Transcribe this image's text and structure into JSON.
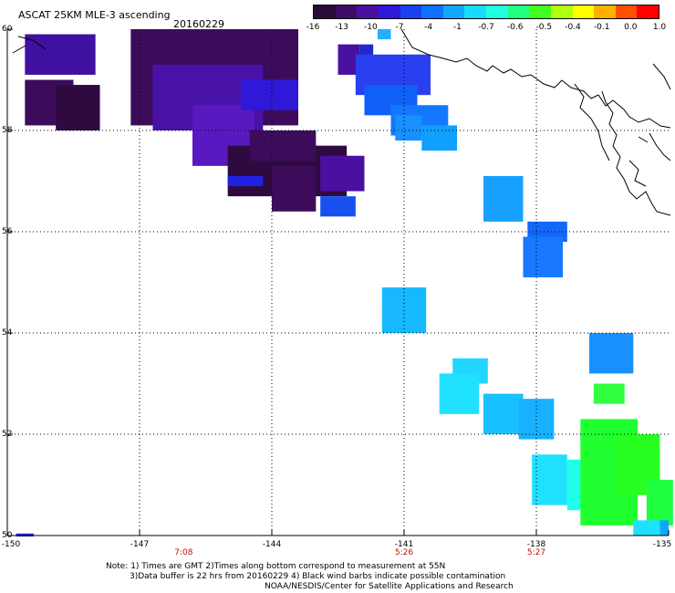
{
  "title": "ASCAT 25KM MLE-3 ascending",
  "date": "20160229",
  "colorbar": {
    "colors": [
      "#2a0a3a",
      "#3c0c66",
      "#4a10a0",
      "#3018d8",
      "#1a40f0",
      "#1070ff",
      "#10a8ff",
      "#18dcff",
      "#20ffe0",
      "#20ff80",
      "#40ff20",
      "#b0ff10",
      "#ffff00",
      "#ffb000",
      "#ff5000",
      "#ff0000"
    ],
    "labels": [
      "-16",
      "-13",
      "-10",
      "-7",
      "-4",
      "-1",
      "-0.7",
      "-0.6",
      "-0.5",
      "-0.4",
      "-0.1",
      "0.0",
      "1.0"
    ]
  },
  "axes": {
    "lat_labels": [
      "60",
      "58",
      "56",
      "54",
      "52",
      "50"
    ],
    "lon_labels": [
      "-150",
      "-147",
      "-144",
      "-141",
      "-138",
      "-135"
    ],
    "time_labels": [
      "7:08",
      "5:26",
      "5:27"
    ],
    "lat_range": [
      50,
      60
    ],
    "lon_range": [
      -150,
      -135
    ]
  },
  "notes": {
    "line1": "Note: 1) Times are GMT 2)Times along bottom correspond to measurement at 55N",
    "line2": "3)Data buffer is 22 hrs from 20160229 4) Black wind barbs indicate possible contamination",
    "line3": "NOAA/NESDIS/Center for Satellite Applications and Research"
  },
  "map_data": {
    "lon_range": [
      -150,
      -135
    ],
    "lat_range": [
      50,
      60
    ],
    "patches": [
      {
        "lon": -149.6,
        "lat": 59.9,
        "w": 1.6,
        "h": 0.8,
        "color": "#4010a0"
      },
      {
        "lon": -149.6,
        "lat": 59.0,
        "w": 1.1,
        "h": 0.9,
        "color": "#3c0c5a"
      },
      {
        "lon": -148.9,
        "lat": 58.9,
        "w": 1.0,
        "h": 0.9,
        "color": "#2e0a40"
      },
      {
        "lon": -147.2,
        "lat": 60.0,
        "w": 3.8,
        "h": 1.9,
        "color": "#3c0c5a"
      },
      {
        "lon": -146.7,
        "lat": 59.3,
        "w": 2.5,
        "h": 1.3,
        "color": "#4812a8"
      },
      {
        "lon": -145.8,
        "lat": 58.5,
        "w": 1.4,
        "h": 1.2,
        "color": "#5a18c0"
      },
      {
        "lon": -145.0,
        "lat": 57.7,
        "w": 2.7,
        "h": 1.0,
        "color": "#2e0a40"
      },
      {
        "lon": -144.5,
        "lat": 58.0,
        "w": 1.5,
        "h": 0.6,
        "color": "#3c0c5a"
      },
      {
        "lon": -142.9,
        "lat": 57.5,
        "w": 1.0,
        "h": 0.7,
        "color": "#4a10a0"
      },
      {
        "lon": -142.9,
        "lat": 56.7,
        "w": 0.8,
        "h": 0.4,
        "color": "#1850f0"
      },
      {
        "lon": -144.0,
        "lat": 57.3,
        "w": 1.0,
        "h": 0.9,
        "color": "#3c0c5a"
      },
      {
        "lon": -145.0,
        "lat": 57.1,
        "w": 0.8,
        "h": 0.2,
        "color": "#2020e0"
      },
      {
        "lon": -144.7,
        "lat": 59.0,
        "w": 1.3,
        "h": 0.6,
        "color": "#3018d8"
      },
      {
        "lon": -141.6,
        "lat": 60.0,
        "w": 0.3,
        "h": 0.2,
        "color": "#20b0ff"
      },
      {
        "lon": -142.0,
        "lat": 59.7,
        "w": 0.3,
        "h": 0.5,
        "color": "#2028d0"
      },
      {
        "lon": -142.5,
        "lat": 59.7,
        "w": 0.5,
        "h": 0.6,
        "color": "#4a10a0"
      },
      {
        "lon": -142.1,
        "lat": 59.5,
        "w": 1.7,
        "h": 0.8,
        "color": "#2a40f0"
      },
      {
        "lon": -141.9,
        "lat": 58.9,
        "w": 1.2,
        "h": 0.6,
        "color": "#1060f8"
      },
      {
        "lon": -141.3,
        "lat": 58.5,
        "w": 1.3,
        "h": 0.6,
        "color": "#1478ff"
      },
      {
        "lon": -140.6,
        "lat": 58.1,
        "w": 0.8,
        "h": 0.5,
        "color": "#10a0ff"
      },
      {
        "lon": -141.2,
        "lat": 58.3,
        "w": 0.6,
        "h": 0.5,
        "color": "#1890ff"
      },
      {
        "lon": -139.2,
        "lat": 57.1,
        "w": 0.9,
        "h": 0.9,
        "color": "#18a0ff"
      },
      {
        "lon": -138.2,
        "lat": 56.2,
        "w": 0.9,
        "h": 0.4,
        "color": "#1468f8"
      },
      {
        "lon": -138.3,
        "lat": 55.9,
        "w": 0.9,
        "h": 0.8,
        "color": "#1878ff"
      },
      {
        "lon": -141.5,
        "lat": 54.9,
        "w": 1.0,
        "h": 0.9,
        "color": "#18b8ff"
      },
      {
        "lon": -136.8,
        "lat": 54.0,
        "w": 1.0,
        "h": 0.8,
        "color": "#1890ff"
      },
      {
        "lon": -139.9,
        "lat": 53.5,
        "w": 0.8,
        "h": 0.5,
        "color": "#20d8ff"
      },
      {
        "lon": -140.2,
        "lat": 53.2,
        "w": 0.9,
        "h": 0.8,
        "color": "#20e0ff"
      },
      {
        "lon": -139.2,
        "lat": 52.8,
        "w": 0.9,
        "h": 0.8,
        "color": "#18c0ff"
      },
      {
        "lon": -138.4,
        "lat": 52.7,
        "w": 0.8,
        "h": 0.8,
        "color": "#18b0ff"
      },
      {
        "lon": -138.1,
        "lat": 51.6,
        "w": 0.8,
        "h": 1.0,
        "color": "#20e0ff"
      },
      {
        "lon": -137.3,
        "lat": 51.5,
        "w": 0.8,
        "h": 1.0,
        "color": "#20ffe8"
      },
      {
        "lon": -136.7,
        "lat": 53.0,
        "w": 0.7,
        "h": 0.4,
        "color": "#30ff40"
      },
      {
        "lon": -137.0,
        "lat": 52.3,
        "w": 1.3,
        "h": 2.1,
        "color": "#20ff30"
      },
      {
        "lon": -136.2,
        "lat": 52.0,
        "w": 1.0,
        "h": 1.2,
        "color": "#28ff20"
      },
      {
        "lon": -135.5,
        "lat": 51.1,
        "w": 0.6,
        "h": 0.9,
        "color": "#20ff40"
      },
      {
        "lon": -135.8,
        "lat": 50.3,
        "w": 0.6,
        "h": 0.3,
        "color": "#20e0ff"
      },
      {
        "lon": -135.2,
        "lat": 50.3,
        "w": 0.2,
        "h": 0.3,
        "color": "#10a8ff"
      },
      {
        "lon": -149.8,
        "lat": 50.04,
        "w": 0.4,
        "h": 0.06,
        "color": "#2030e0"
      }
    ]
  }
}
